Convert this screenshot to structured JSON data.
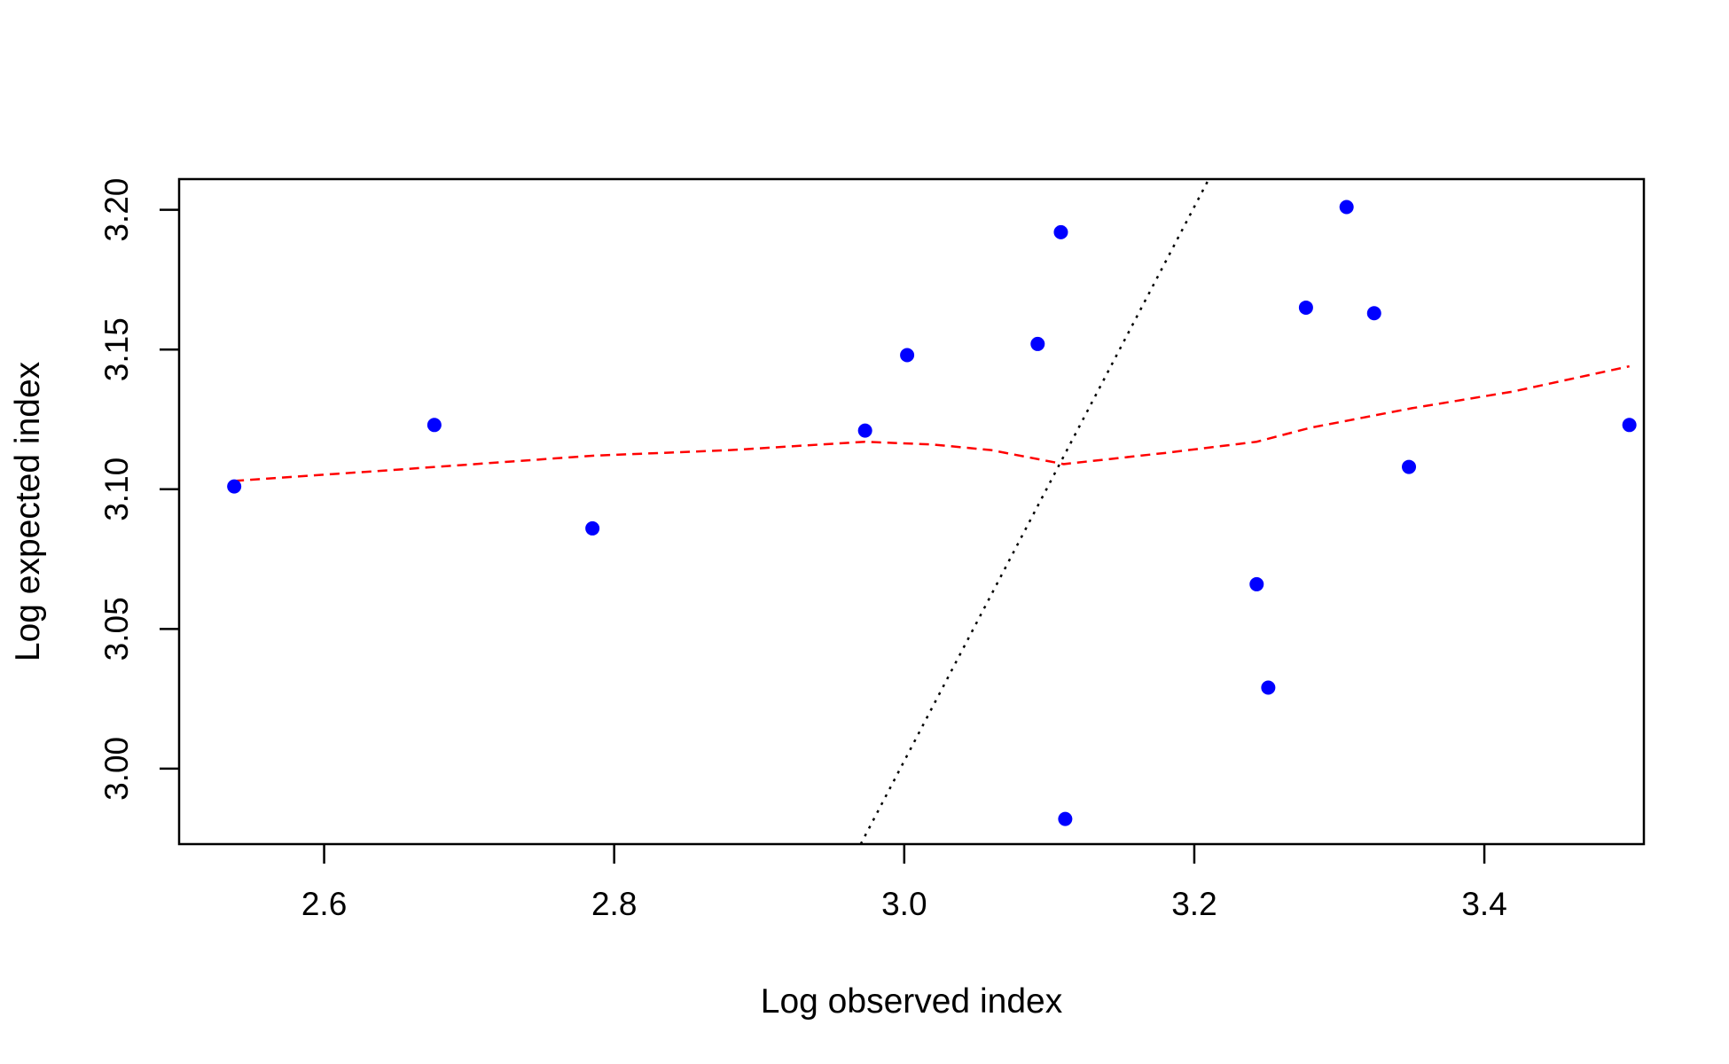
{
  "chart_data": {
    "type": "scatter",
    "title": "",
    "xlabel": "Log observed index",
    "ylabel": "Log expected index",
    "xlim": [
      2.5,
      3.51
    ],
    "ylim": [
      2.973,
      3.211
    ],
    "xticks": [
      {
        "value": 2.6,
        "label": "2.6"
      },
      {
        "value": 2.8,
        "label": "2.8"
      },
      {
        "value": 3.0,
        "label": "3.0"
      },
      {
        "value": 3.2,
        "label": "3.2"
      },
      {
        "value": 3.4,
        "label": "3.4"
      }
    ],
    "yticks": [
      {
        "value": 3.0,
        "label": "3.00"
      },
      {
        "value": 3.05,
        "label": "3.05"
      },
      {
        "value": 3.1,
        "label": "3.10"
      },
      {
        "value": 3.15,
        "label": "3.15"
      },
      {
        "value": 3.2,
        "label": "3.20"
      }
    ],
    "grid": false,
    "legend": "none",
    "points": {
      "color": "#0000ff",
      "x": [
        2.538,
        2.676,
        2.785,
        2.973,
        3.002,
        3.092,
        3.108,
        3.111,
        3.243,
        3.251,
        3.277,
        3.305,
        3.324,
        3.348,
        3.5
      ],
      "y": [
        3.101,
        3.123,
        3.086,
        3.121,
        3.148,
        3.152,
        3.192,
        2.982,
        3.066,
        3.029,
        3.165,
        3.201,
        3.163,
        3.108,
        3.123
      ]
    },
    "smooth_line": {
      "color": "#ff0000",
      "style": "dashed",
      "x": [
        2.538,
        2.65,
        2.785,
        2.88,
        2.973,
        3.02,
        3.06,
        3.11,
        3.18,
        3.243,
        3.28,
        3.35,
        3.42,
        3.5
      ],
      "y": [
        3.103,
        3.107,
        3.112,
        3.114,
        3.117,
        3.116,
        3.114,
        3.109,
        3.113,
        3.117,
        3.122,
        3.129,
        3.135,
        3.144
      ]
    },
    "reference_line": {
      "color": "#000000",
      "style": "dotted",
      "x": [
        2.97,
        3.21
      ],
      "y": [
        2.973,
        3.211
      ]
    }
  }
}
